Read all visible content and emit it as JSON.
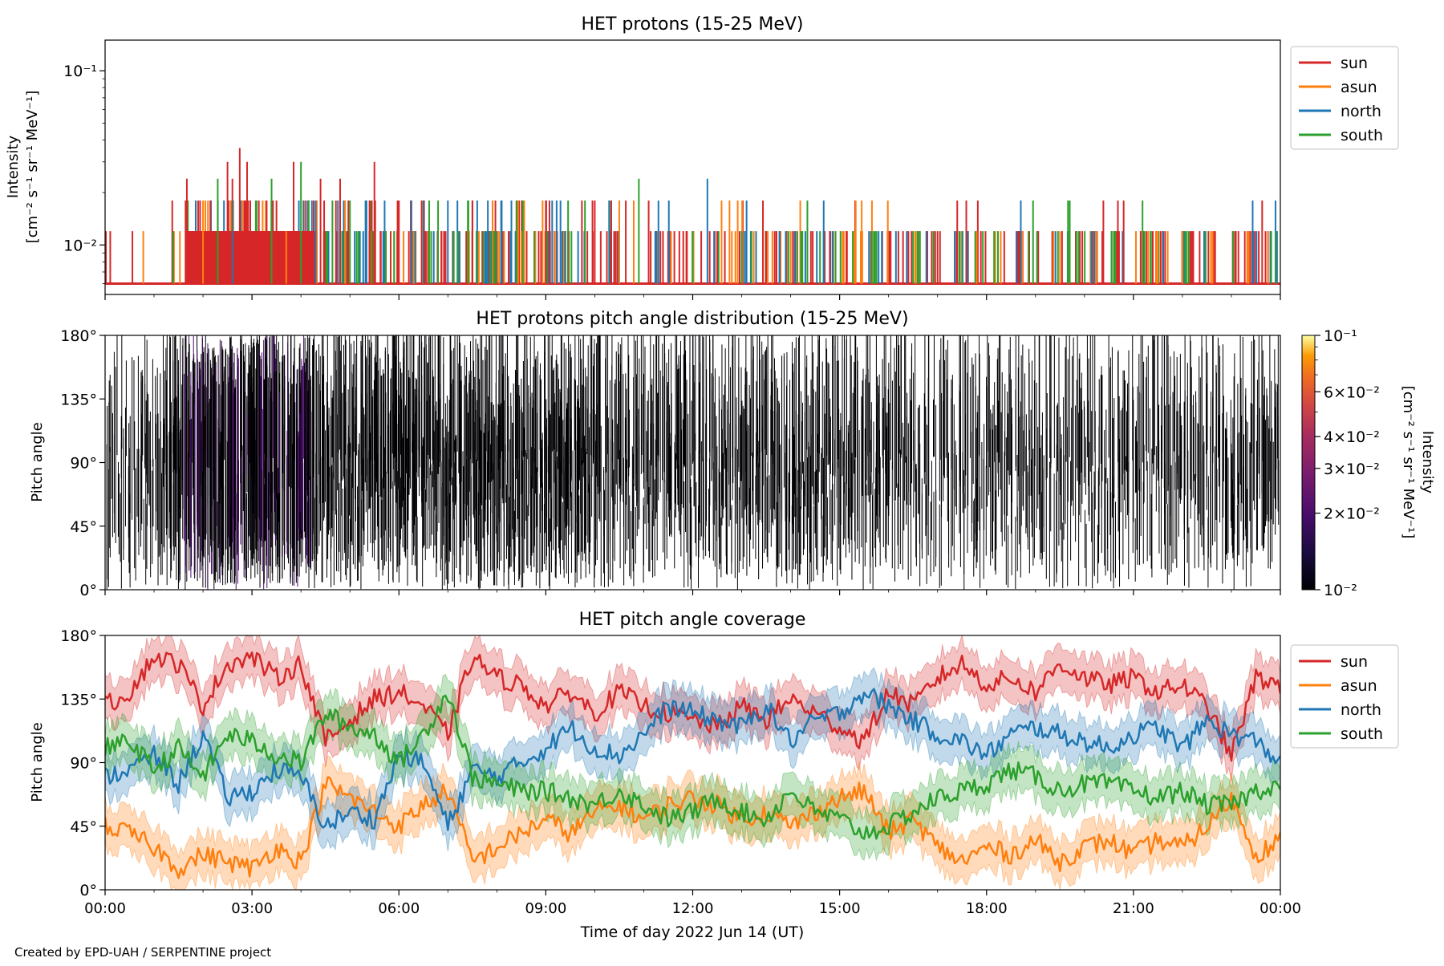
{
  "footer": {
    "credit": "Created by EPD-UAH / SERPENTINE project"
  },
  "x_axis": {
    "label": "Time of day 2022 Jun 14 (UT)",
    "tick_labels": [
      "00:00",
      "03:00",
      "06:00",
      "09:00",
      "12:00",
      "15:00",
      "18:00",
      "21:00",
      "00:00"
    ]
  },
  "colors": {
    "sun": "#d62728",
    "asun": "#ff7f0e",
    "north": "#1f77b4",
    "south": "#2ca02c"
  },
  "chart_data": [
    {
      "type": "line",
      "title": "HET protons (15-25 MeV)",
      "ylabel_line1": "Intensity",
      "ylabel_line2": "[cm⁻² s⁻¹ sr⁻¹ MeV⁻¹]",
      "yscale": "log",
      "ylim": [
        0.0052,
        0.15
      ],
      "y_tick_labels": [
        "10⁻¹",
        "10⁻²"
      ],
      "xlim_hours": [
        0,
        24
      ],
      "legend": {
        "placement": "outside-right-top",
        "entries": [
          "sun",
          "asun",
          "north",
          "south"
        ]
      },
      "levels": [
        0.006,
        0.012,
        0.018,
        0.024,
        0.03,
        0.036
      ],
      "series": [
        {
          "name": "sun",
          "color": "#d62728",
          "spikes": [
            [
              1.67,
              0.024
            ],
            [
              1.9,
              0.018
            ],
            [
              2.15,
              0.018
            ],
            [
              2.5,
              0.03
            ],
            [
              2.6,
              0.024
            ],
            [
              2.75,
              0.036
            ],
            [
              2.9,
              0.03
            ],
            [
              3.3,
              0.018
            ],
            [
              3.5,
              0.018
            ],
            [
              3.85,
              0.03
            ],
            [
              4.1,
              0.018
            ],
            [
              4.4,
              0.024
            ],
            [
              4.8,
              0.024
            ],
            [
              5.4,
              0.018
            ],
            [
              5.5,
              0.03
            ],
            [
              6.0,
              0.018
            ],
            [
              7.5,
              0.018
            ],
            [
              9.0,
              0.018
            ],
            [
              10.0,
              0.018
            ],
            [
              11.1,
              0.018
            ],
            [
              12.5,
              0.012
            ],
            [
              13.5,
              0.012
            ],
            [
              14.8,
              0.012
            ],
            [
              16.2,
              0.012
            ],
            [
              17.0,
              0.012
            ],
            [
              20.8,
              0.018
            ],
            [
              22.2,
              0.006
            ]
          ]
        },
        {
          "name": "asun",
          "color": "#ff7f0e",
          "spikes": [
            [
              0.78,
              0.012
            ],
            [
              2.0,
              0.018
            ],
            [
              3.7,
              0.012
            ],
            [
              4.9,
              0.018
            ],
            [
              6.3,
              0.012
            ],
            [
              8.5,
              0.012
            ],
            [
              10.5,
              0.018
            ],
            [
              12.8,
              0.012
            ],
            [
              14.0,
              0.012
            ],
            [
              15.3,
              0.012
            ],
            [
              17.8,
              0.012
            ],
            [
              19.5,
              0.012
            ],
            [
              21.5,
              0.012
            ],
            [
              21.7,
              0.012
            ],
            [
              22.0,
              0.012
            ]
          ]
        },
        {
          "name": "north",
          "color": "#1f77b4",
          "spikes": [
            [
              2.6,
              0.018
            ],
            [
              4.3,
              0.018
            ],
            [
              7.0,
              0.018
            ],
            [
              8.1,
              0.018
            ],
            [
              9.3,
              0.018
            ],
            [
              10.3,
              0.018
            ],
            [
              11.3,
              0.018
            ],
            [
              12.3,
              0.024
            ],
            [
              13.1,
              0.018
            ],
            [
              14.3,
              0.012
            ],
            [
              15.6,
              0.012
            ],
            [
              18.7,
              0.018
            ],
            [
              20.2,
              0.012
            ],
            [
              22.6,
              0.006
            ],
            [
              23.7,
              0.006
            ]
          ]
        },
        {
          "name": "south",
          "color": "#2ca02c",
          "spikes": [
            [
              2.3,
              0.024
            ],
            [
              3.4,
              0.024
            ],
            [
              4.0,
              0.03
            ],
            [
              5.0,
              0.018
            ],
            [
              6.8,
              0.018
            ],
            [
              8.4,
              0.018
            ],
            [
              9.8,
              0.018
            ],
            [
              10.9,
              0.024
            ],
            [
              12.0,
              0.012
            ],
            [
              13.2,
              0.012
            ],
            [
              14.6,
              0.012
            ],
            [
              17.5,
              0.012
            ],
            [
              18.95,
              0.018
            ],
            [
              19.7,
              0.018
            ],
            [
              20.6,
              0.012
            ]
          ]
        }
      ]
    },
    {
      "type": "heatmap",
      "title": "HET protons pitch angle distribution (15-25 MeV)",
      "ylabel": "Pitch angle",
      "ylim": [
        0,
        180
      ],
      "xlim_hours": [
        0,
        24
      ],
      "y_tick_labels": [
        "0°",
        "45°",
        "90°",
        "135°",
        "180°"
      ],
      "colorbar": {
        "label_line1": "Intensity",
        "label_line2": "[cm⁻² s⁻¹ sr⁻¹ MeV⁻¹]",
        "scale": "log",
        "range": [
          0.01,
          0.1
        ],
        "colormap": "inferno",
        "tick_labels": [
          "10⁻¹",
          "6×10⁻²",
          "4×10⁻²",
          "3×10⁻²",
          "2×10⁻²",
          "10⁻²"
        ]
      }
    },
    {
      "type": "line",
      "title": "HET pitch angle coverage",
      "ylabel": "Pitch angle",
      "ylim": [
        0,
        180
      ],
      "xlim_hours": [
        0,
        24
      ],
      "y_tick_labels": [
        "0°",
        "45°",
        "90°",
        "135°",
        "180°"
      ],
      "legend": {
        "placement": "outside-right-top",
        "entries": [
          "sun",
          "asun",
          "north",
          "south"
        ]
      },
      "band_halfwidth_deg": 15,
      "series": [
        {
          "name": "sun",
          "color": "#d62728",
          "x": [
            0,
            0.5,
            1,
            1.5,
            2,
            2.5,
            3,
            3.5,
            4,
            4.5,
            5,
            5.5,
            6,
            6.5,
            7,
            7.5,
            8,
            8.5,
            9,
            9.5,
            10,
            10.5,
            11,
            11.5,
            12,
            12.5,
            13,
            13.5,
            14,
            14.5,
            15,
            15.5,
            16,
            16.5,
            17,
            17.5,
            18,
            18.5,
            19,
            19.5,
            20,
            20.5,
            21,
            21.5,
            22,
            22.5,
            23,
            23.5,
            24
          ],
          "values": [
            130,
            140,
            165,
            160,
            130,
            160,
            165,
            150,
            160,
            105,
            120,
            135,
            140,
            130,
            110,
            165,
            150,
            145,
            130,
            140,
            125,
            140,
            130,
            125,
            120,
            115,
            130,
            120,
            135,
            125,
            115,
            105,
            140,
            130,
            150,
            160,
            145,
            150,
            140,
            160,
            150,
            145,
            150,
            140,
            145,
            130,
            95,
            150,
            145
          ]
        },
        {
          "name": "asun",
          "color": "#ff7f0e",
          "x": [
            0,
            0.5,
            1,
            1.5,
            2,
            2.5,
            3,
            3.5,
            4,
            4.5,
            5,
            5.5,
            6,
            6.5,
            7,
            7.5,
            8,
            8.5,
            9,
            9.5,
            10,
            10.5,
            11,
            11.5,
            12,
            12.5,
            13,
            13.5,
            14,
            14.5,
            15,
            15.5,
            16,
            16.5,
            17,
            17.5,
            18,
            18.5,
            19,
            19.5,
            20,
            20.5,
            21,
            21.5,
            22,
            22.5,
            23,
            23.5,
            24
          ],
          "values": [
            45,
            40,
            30,
            15,
            25,
            20,
            15,
            30,
            20,
            75,
            65,
            55,
            45,
            60,
            70,
            20,
            30,
            40,
            50,
            40,
            55,
            60,
            50,
            60,
            65,
            60,
            50,
            55,
            45,
            55,
            65,
            70,
            40,
            50,
            30,
            20,
            30,
            25,
            35,
            20,
            30,
            35,
            25,
            35,
            30,
            45,
            65,
            25,
            35
          ]
        },
        {
          "name": "north",
          "color": "#1f77b4",
          "x": [
            0,
            0.5,
            1,
            1.5,
            2,
            2.5,
            3,
            3.5,
            4,
            4.5,
            5,
            5.5,
            6,
            6.5,
            7,
            7.5,
            8,
            8.5,
            9,
            9.5,
            10,
            10.5,
            11,
            11.5,
            12,
            12.5,
            13,
            13.5,
            14,
            14.5,
            15,
            15.5,
            16,
            16.5,
            17,
            17.5,
            18,
            18.5,
            19,
            19.5,
            20,
            20.5,
            21,
            21.5,
            22,
            22.5,
            23,
            23.5,
            24
          ],
          "values": [
            80,
            85,
            95,
            75,
            110,
            65,
            70,
            85,
            80,
            45,
            55,
            50,
            95,
            90,
            45,
            85,
            80,
            90,
            100,
            115,
            100,
            95,
            110,
            130,
            125,
            120,
            115,
            130,
            105,
            120,
            125,
            140,
            130,
            120,
            110,
            105,
            95,
            110,
            115,
            110,
            105,
            100,
            110,
            115,
            100,
            120,
            110,
            105,
            90
          ]
        },
        {
          "name": "south",
          "color": "#2ca02c",
          "x": [
            0,
            0.5,
            1,
            1.5,
            2,
            2.5,
            3,
            3.5,
            4,
            4.5,
            5,
            5.5,
            6,
            6.5,
            7,
            7.5,
            8,
            8.5,
            9,
            9.5,
            10,
            10.5,
            11,
            11.5,
            12,
            12.5,
            13,
            13.5,
            14,
            14.5,
            15,
            15.5,
            16,
            16.5,
            17,
            17.5,
            18,
            18.5,
            19,
            19.5,
            20,
            20.5,
            21,
            21.5,
            22,
            22.5,
            23,
            23.5,
            24
          ],
          "values": [
            100,
            105,
            85,
            100,
            80,
            110,
            105,
            95,
            90,
            125,
            115,
            110,
            90,
            110,
            140,
            80,
            75,
            70,
            70,
            65,
            60,
            70,
            60,
            50,
            55,
            65,
            55,
            50,
            70,
            55,
            50,
            40,
            45,
            55,
            65,
            70,
            75,
            85,
            80,
            70,
            75,
            75,
            70,
            65,
            70,
            60,
            60,
            70,
            75
          ]
        }
      ]
    }
  ]
}
